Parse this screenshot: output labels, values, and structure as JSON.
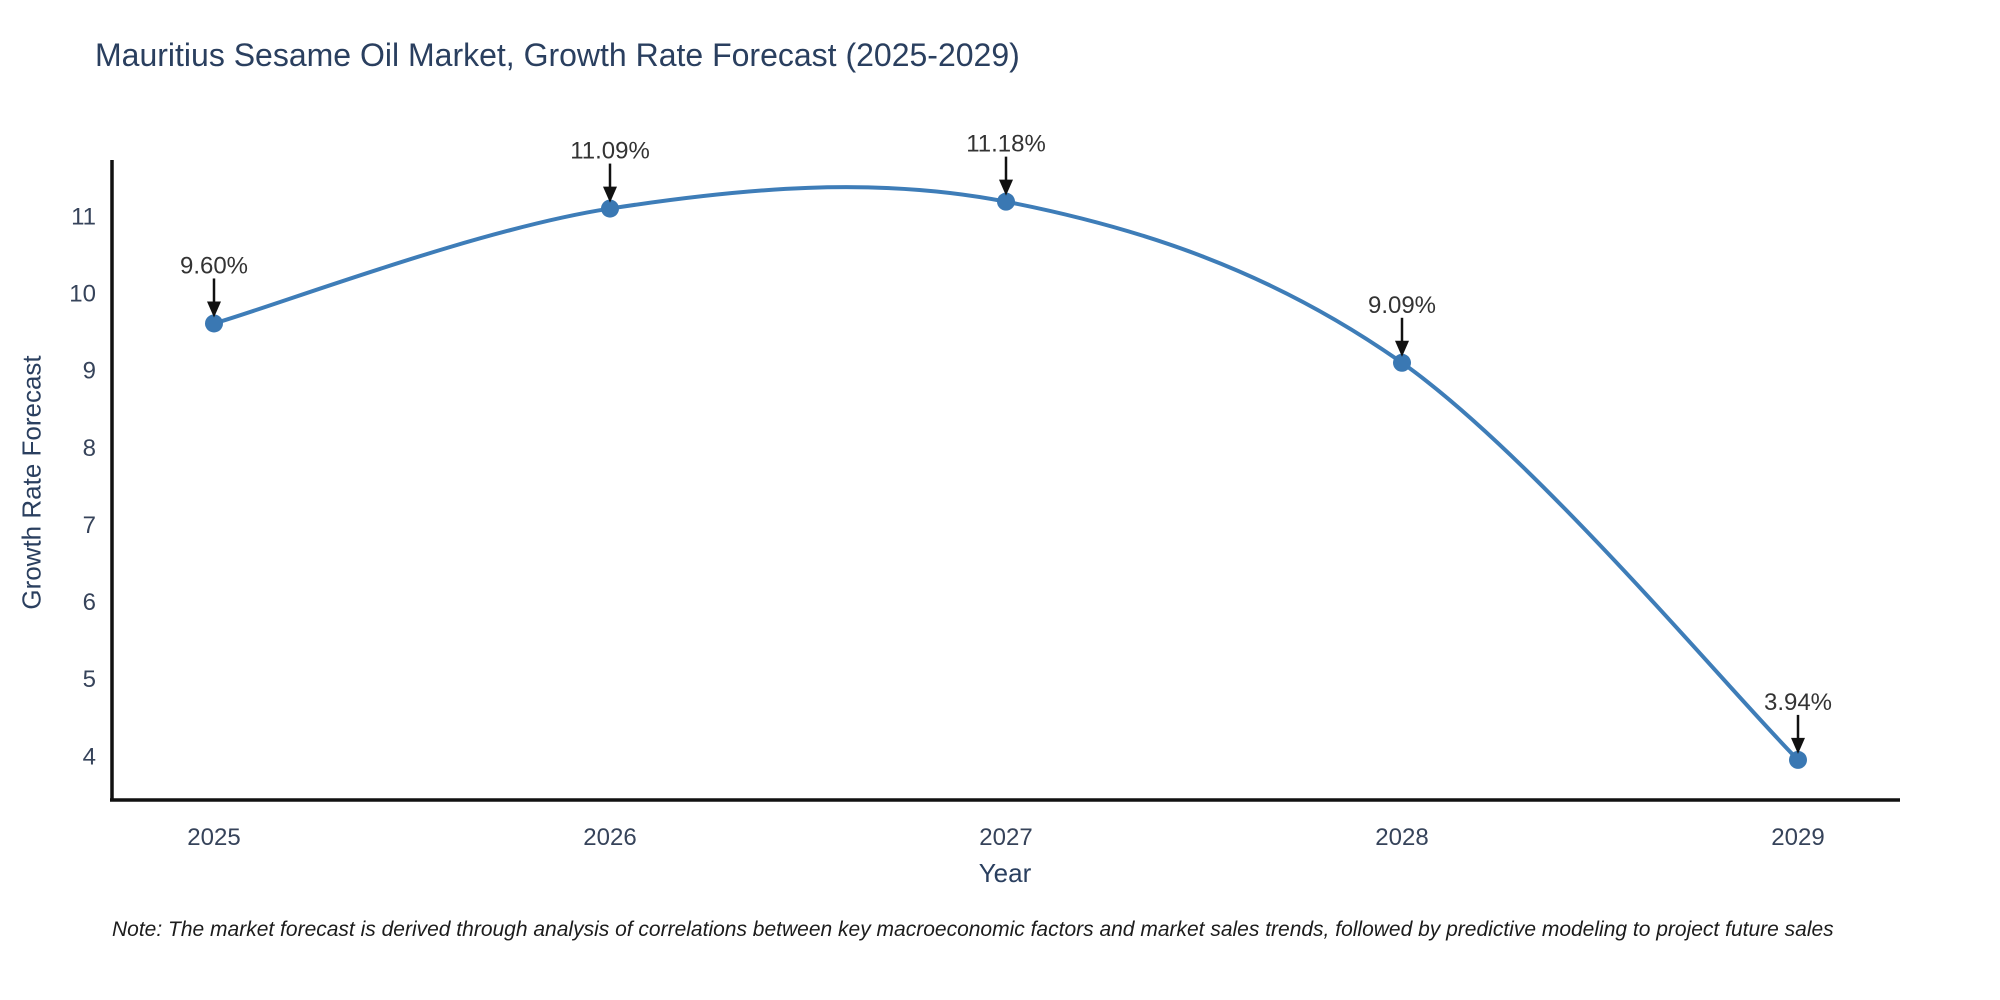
{
  "title": "Mauritius Sesame Oil Market, Growth Rate Forecast (2025-2029)",
  "note": "Note: The market forecast is derived through analysis of correlations between key macroeconomic factors and market sales trends, followed by predictive modeling to project future sales",
  "colors": {
    "line": "#3e7db8",
    "marker": "#3a78b3",
    "axis": "#111111",
    "title_text": "#2a3f5f",
    "tick_text": "#36435a",
    "annotation_text": "#333333",
    "arrow": "#111111",
    "background": "#ffffff"
  },
  "chart_data": {
    "type": "line",
    "line_shape": "spline",
    "x": [
      2025,
      2026,
      2027,
      2028,
      2029
    ],
    "series": [
      {
        "name": "Growth Rate Forecast",
        "values": [
          9.6,
          11.09,
          11.18,
          9.09,
          3.94
        ]
      }
    ],
    "point_labels": [
      "9.60%",
      "11.09%",
      "11.18%",
      "9.09%",
      "3.94%"
    ],
    "title": "Mauritius Sesame Oil Market, Growth Rate Forecast (2025-2029)",
    "xlabel": "Year",
    "ylabel": "Growth Rate Forecast",
    "xticks": [
      "2025",
      "2026",
      "2027",
      "2028",
      "2029"
    ],
    "yticks": [
      4,
      5,
      6,
      7,
      8,
      9,
      10,
      11
    ],
    "ylim": [
      3.42,
      11.72
    ],
    "grid": false,
    "legend": "none",
    "annotations_style": "value label with downward black arrow above each point"
  }
}
